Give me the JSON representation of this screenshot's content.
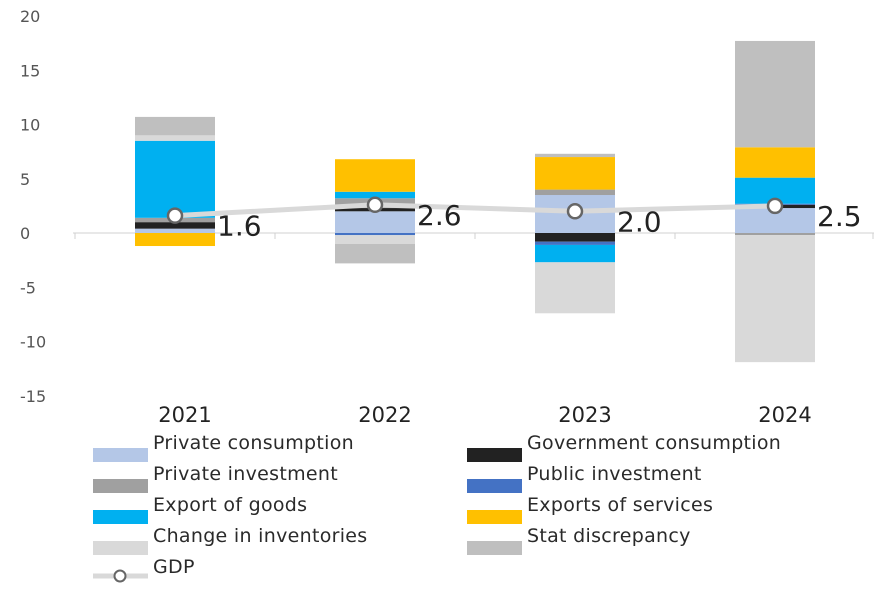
{
  "chart_data": {
    "type": "bar",
    "stacked": true,
    "categories": [
      "2021",
      "2022",
      "2023",
      "2024"
    ],
    "ylim": [
      -15,
      20
    ],
    "yticks": [
      20,
      15,
      10,
      5,
      0,
      -5,
      -10,
      -15
    ],
    "series": [
      {
        "name": "Private consumption",
        "color": "#b4c7e7",
        "values": [
          0.4,
          2.0,
          3.5,
          2.3
        ]
      },
      {
        "name": "Government consumption",
        "color": "#222222",
        "values": [
          0.6,
          0.3,
          -0.8,
          0.3
        ]
      },
      {
        "name": "Private investment",
        "color": "#a0a0a0",
        "values": [
          0.4,
          0.9,
          0.5,
          -0.2
        ]
      },
      {
        "name": "Public investment",
        "color": "#4472c4",
        "values": [
          0.0,
          -0.2,
          -0.3,
          0.1
        ]
      },
      {
        "name": "Export of goods",
        "color": "#00b0f0",
        "values": [
          7.1,
          0.6,
          -1.6,
          2.4
        ]
      },
      {
        "name": "Exports of services",
        "color": "#ffc000",
        "values": [
          -1.2,
          3.0,
          3.0,
          2.8
        ]
      },
      {
        "name": "Change in inventories",
        "color": "#d9d9d9",
        "values": [
          0.5,
          -0.8,
          -4.7,
          -11.7
        ]
      },
      {
        "name": "Stat discrepancy",
        "color": "#bfbfbf",
        "values": [
          1.7,
          -1.8,
          0.3,
          9.8
        ]
      }
    ],
    "gdp": {
      "name": "GDP",
      "values": [
        1.6,
        2.6,
        2.0,
        2.5
      ],
      "labels": [
        "1.6",
        "2.6",
        "2.0",
        "2.5"
      ],
      "color": "#d9d9d9"
    }
  },
  "legend": {
    "items": [
      {
        "label": "Private consumption",
        "color": "#b4c7e7"
      },
      {
        "label": "Government consumption",
        "color": "#222222"
      },
      {
        "label": "Private investment",
        "color": "#a0a0a0"
      },
      {
        "label": "Public investment",
        "color": "#4472c4"
      },
      {
        "label": "Export of goods",
        "color": "#00b0f0"
      },
      {
        "label": "Exports of services",
        "color": "#ffc000"
      },
      {
        "label": "Change in inventories",
        "color": "#d9d9d9"
      },
      {
        "label": "Stat discrepancy",
        "color": "#bfbfbf"
      }
    ],
    "gdp_label": "GDP"
  }
}
